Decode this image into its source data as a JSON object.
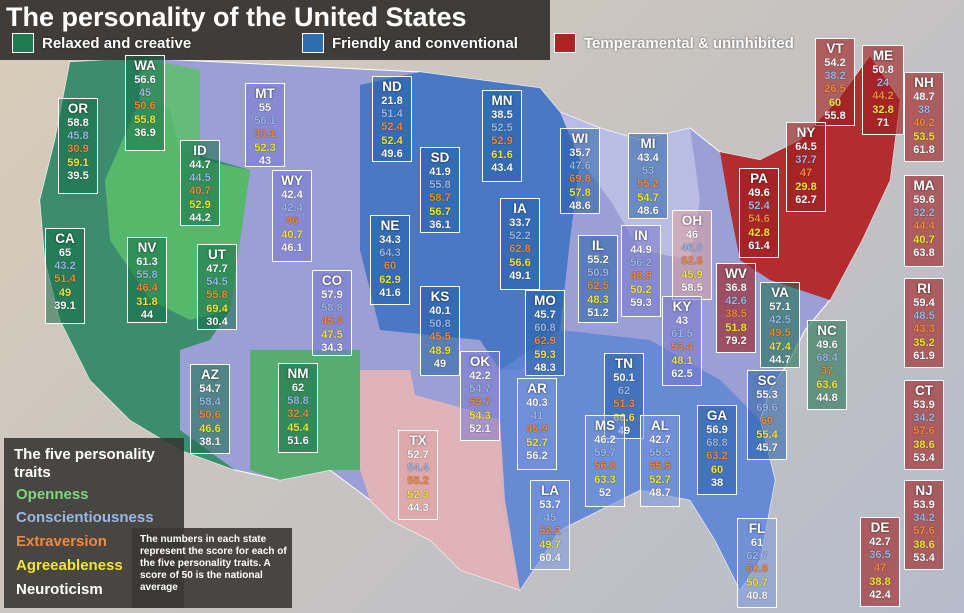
{
  "title": "The personality of the United States",
  "legend": [
    {
      "label": "Relaxed and creative",
      "color": "#1f7a4f"
    },
    {
      "label": "Friendly and conventional",
      "color": "#2e6db0"
    },
    {
      "label": "Temperamental & uninhibited",
      "color": "#b02323"
    }
  ],
  "traits_panel": {
    "title": "The five personality traits",
    "traits": [
      {
        "label": "Openness",
        "color": "#7ed77e"
      },
      {
        "label": "Conscientiousness",
        "color": "#9ab8e6"
      },
      {
        "label": "Extraversion",
        "color": "#f08a3c"
      },
      {
        "label": "Agreeableness",
        "color": "#f2e634"
      },
      {
        "label": "Neuroticism",
        "color": "#ffffff"
      }
    ]
  },
  "note": "The numbers in each state represent the score for each of the five personality traits. A score of 50 is the national average",
  "states": [
    {
      "abbr": "WA",
      "scores": [
        "56.6",
        "45",
        "50.6",
        "55.8",
        "36.9"
      ]
    },
    {
      "abbr": "OR",
      "scores": [
        "58.8",
        "45.8",
        "30.9",
        "59.1",
        "39.5"
      ]
    },
    {
      "abbr": "ID",
      "scores": [
        "44.7",
        "44.5",
        "40.7",
        "52.9",
        "44.2"
      ]
    },
    {
      "abbr": "MT",
      "scores": [
        "55",
        "56.1",
        "33.1",
        "52.3",
        "43"
      ]
    },
    {
      "abbr": "ND",
      "scores": [
        "21.8",
        "51.4",
        "52.4",
        "52.4",
        "49.6"
      ]
    },
    {
      "abbr": "MN",
      "scores": [
        "38.5",
        "52.5",
        "52.9",
        "61.6",
        "43.4"
      ]
    },
    {
      "abbr": "WY",
      "scores": [
        "42.4",
        "42.4",
        "46",
        "40.7",
        "46.1"
      ]
    },
    {
      "abbr": "SD",
      "scores": [
        "41.9",
        "55.8",
        "58.7",
        "56.7",
        "36.1"
      ]
    },
    {
      "abbr": "WI",
      "scores": [
        "35.7",
        "47.6",
        "69.8",
        "57.8",
        "48.6"
      ]
    },
    {
      "abbr": "MI",
      "scores": [
        "43.4",
        "53",
        "55.2",
        "54.7",
        "48.6"
      ]
    },
    {
      "abbr": "CA",
      "scores": [
        "65",
        "43.2",
        "51.4",
        "49",
        "39.1"
      ]
    },
    {
      "abbr": "NV",
      "scores": [
        "61.3",
        "55.8",
        "46.4",
        "31.8",
        "44"
      ]
    },
    {
      "abbr": "UT",
      "scores": [
        "47.7",
        "54.5",
        "55.8",
        "69.4",
        "30.4"
      ]
    },
    {
      "abbr": "NE",
      "scores": [
        "34.3",
        "64.3",
        "60",
        "62.9",
        "41.6"
      ]
    },
    {
      "abbr": "IA",
      "scores": [
        "33.7",
        "52.2",
        "62.8",
        "56.6",
        "49.1"
      ]
    },
    {
      "abbr": "IL",
      "scores": [
        "55.2",
        "50.9",
        "62.5",
        "48.3",
        "51.2"
      ]
    },
    {
      "abbr": "IN",
      "scores": [
        "44.9",
        "56.2",
        "48.9",
        "50.2",
        "59.3"
      ]
    },
    {
      "abbr": "OH",
      "scores": [
        "46",
        "46.6",
        "52.6",
        "45.9",
        "58.5"
      ]
    },
    {
      "abbr": "CO",
      "scores": [
        "57.9",
        "58.8",
        "45.3",
        "47.5",
        "34.3"
      ]
    },
    {
      "abbr": "KS",
      "scores": [
        "40.1",
        "50.8",
        "45.5",
        "48.9",
        "49"
      ]
    },
    {
      "abbr": "MO",
      "scores": [
        "45.7",
        "60.8",
        "62.9",
        "59.3",
        "48.3"
      ]
    },
    {
      "abbr": "KY",
      "scores": [
        "43",
        "61.5",
        "53.4",
        "48.1",
        "62.5"
      ]
    },
    {
      "abbr": "WV",
      "scores": [
        "36.8",
        "42.6",
        "38.5",
        "51.8",
        "79.2"
      ]
    },
    {
      "abbr": "VA",
      "scores": [
        "57.1",
        "42.5",
        "49.5",
        "47.4",
        "44.7"
      ]
    },
    {
      "abbr": "AZ",
      "scores": [
        "54.7",
        "58.4",
        "50.6",
        "46.6",
        "38.1"
      ]
    },
    {
      "abbr": "NM",
      "scores": [
        "62",
        "58.8",
        "32.4",
        "45.4",
        "51.6"
      ]
    },
    {
      "abbr": "OK",
      "scores": [
        "42.2",
        "54.7",
        "59.7",
        "54.3",
        "52.1"
      ]
    },
    {
      "abbr": "AR",
      "scores": [
        "40.3",
        "41",
        "45.9",
        "52.7",
        "56.2"
      ]
    },
    {
      "abbr": "TN",
      "scores": [
        "50.1",
        "62",
        "51.3",
        "66.6",
        "49"
      ]
    },
    {
      "abbr": "NC",
      "scores": [
        "49.6",
        "68.4",
        "37",
        "63.6",
        "44.8"
      ]
    },
    {
      "abbr": "SC",
      "scores": [
        "55.3",
        "69.6",
        "60",
        "55.4",
        "45.7"
      ]
    },
    {
      "abbr": "TX",
      "scores": [
        "52.7",
        "54.4",
        "55.2",
        "52.3",
        "44.3"
      ]
    },
    {
      "abbr": "MS",
      "scores": [
        "46.2",
        "59.7",
        "56.8",
        "63.3",
        "52"
      ]
    },
    {
      "abbr": "AL",
      "scores": [
        "42.7",
        "55.5",
        "55.5",
        "52.7",
        "48.7"
      ]
    },
    {
      "abbr": "GA",
      "scores": [
        "56.9",
        "68.8",
        "63.2",
        "60",
        "38"
      ]
    },
    {
      "abbr": "LA",
      "scores": [
        "53.7",
        "45",
        "52.2",
        "49.7",
        "60.4"
      ]
    },
    {
      "abbr": "FL",
      "scores": [
        "61",
        "62.7",
        "60.9",
        "50.7",
        "40.8"
      ]
    },
    {
      "abbr": "VT",
      "scores": [
        "54.2",
        "38.2",
        "26.5",
        "60",
        "55.8"
      ]
    },
    {
      "abbr": "ME",
      "scores": [
        "50.8",
        "24",
        "44.2",
        "32.8",
        "71"
      ]
    },
    {
      "abbr": "NH",
      "scores": [
        "48.7",
        "38",
        "40.2",
        "53.5",
        "61.8"
      ]
    },
    {
      "abbr": "NY",
      "scores": [
        "64.5",
        "37.7",
        "47",
        "29.8",
        "62.7"
      ]
    },
    {
      "abbr": "PA",
      "scores": [
        "49.6",
        "52.4",
        "54.6",
        "42.8",
        "61.4"
      ]
    },
    {
      "abbr": "MA",
      "scores": [
        "59.6",
        "32.2",
        "44.4",
        "40.7",
        "63.8"
      ]
    },
    {
      "abbr": "RI",
      "scores": [
        "59.4",
        "48.5",
        "43.3",
        "35.2",
        "61.9"
      ]
    },
    {
      "abbr": "CT",
      "scores": [
        "53.9",
        "34.2",
        "57.6",
        "38.6",
        "53.4"
      ]
    },
    {
      "abbr": "NJ",
      "scores": [
        "53.9",
        "34.2",
        "57.6",
        "38.6",
        "53.4"
      ]
    },
    {
      "abbr": "DE",
      "scores": [
        "42.7",
        "36.5",
        "47",
        "38.8",
        "42.4"
      ]
    }
  ]
}
